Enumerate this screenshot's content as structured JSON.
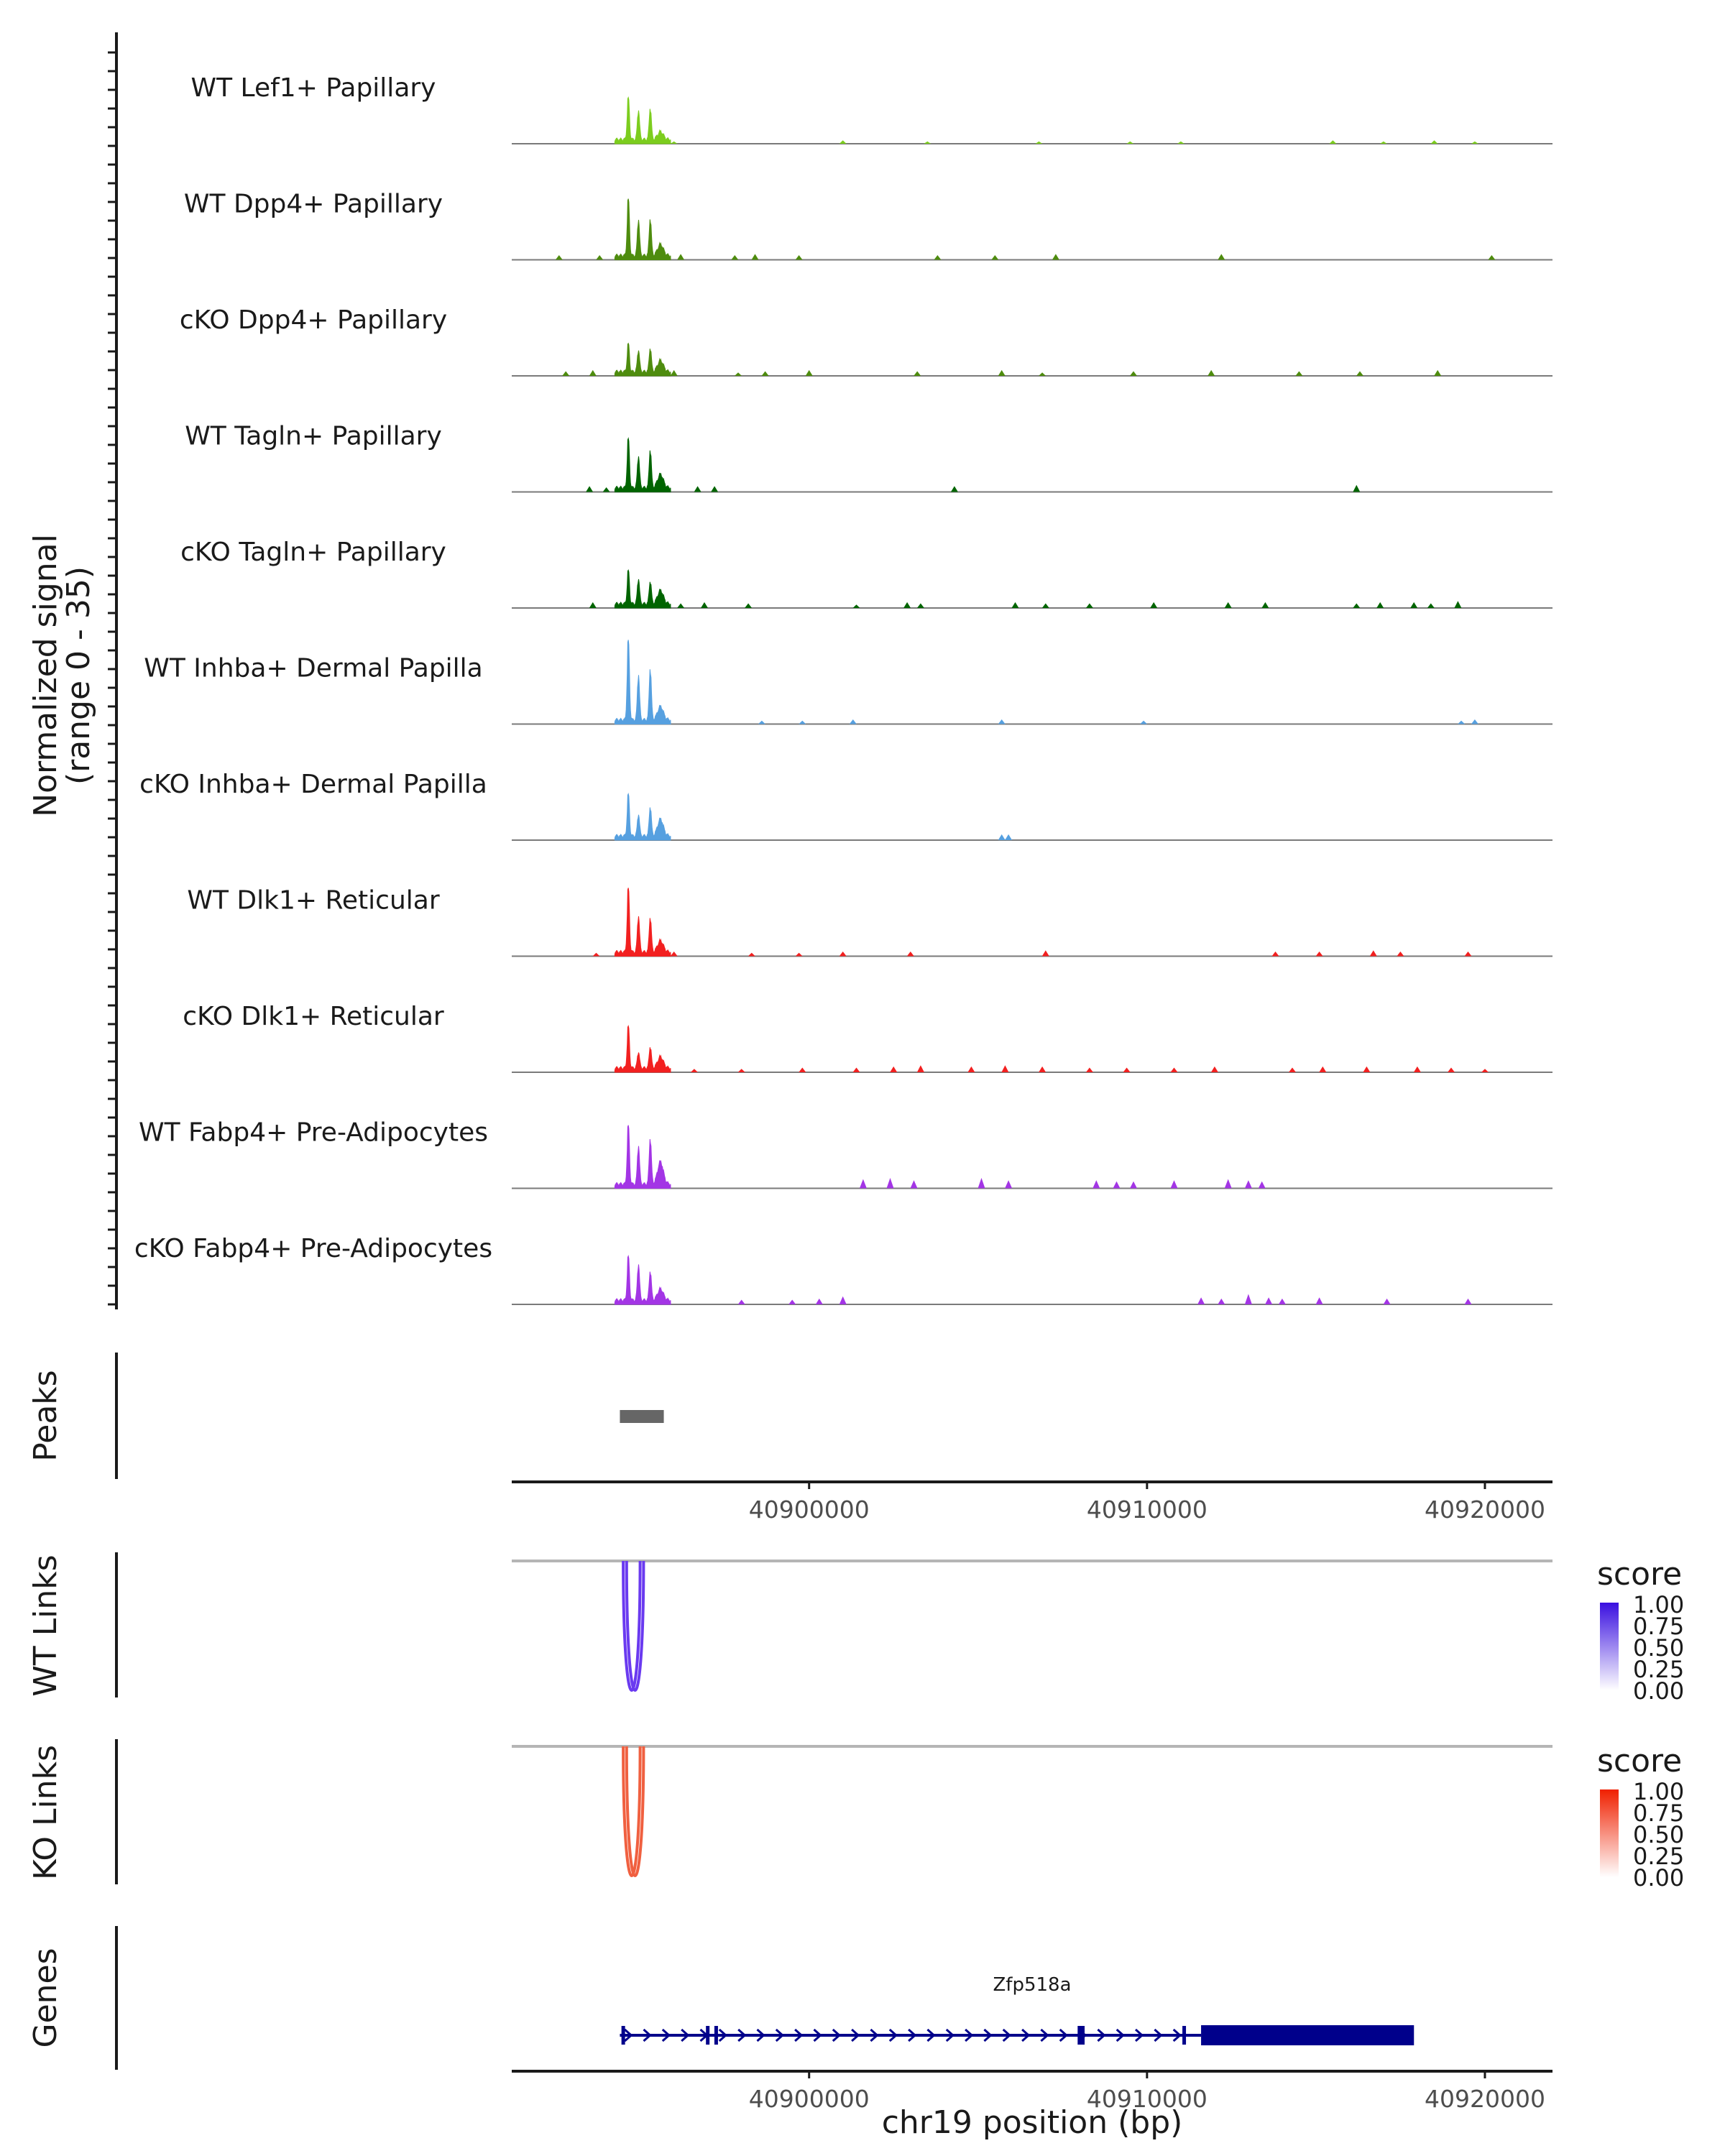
{
  "chart_data": {
    "type": "genome-coverage",
    "region": "chr19",
    "xlim": [
      40891200,
      40922000
    ],
    "x_ticks": [
      "40900000",
      "40910000",
      "40920000"
    ],
    "x_tick_values": [
      40900000,
      40910000,
      40920000
    ],
    "xlabel": "chr19 position (bp)",
    "coverage_ylabel": "Normalized signal",
    "coverage_ylabel_range": "(range 0 - 35)",
    "coverage_range": [
      0,
      35
    ],
    "tracks": [
      {
        "label": "WT Lef1+ Papillary",
        "color": "#7CCD1E",
        "peak_heights": [
          0.39,
          0.27,
          0.29,
          0.07
        ],
        "noise": [
          [
            40896000,
            0.02
          ],
          [
            40901000,
            0.03
          ],
          [
            40903500,
            0.02
          ],
          [
            40906800,
            0.02
          ],
          [
            40909500,
            0.02
          ],
          [
            40911000,
            0.02
          ],
          [
            40915500,
            0.03
          ],
          [
            40917000,
            0.02
          ],
          [
            40918500,
            0.03
          ],
          [
            40919700,
            0.02
          ]
        ]
      },
      {
        "label": "WT Dpp4+ Papillary",
        "color": "#4E8C0E",
        "peak_heights": [
          0.53,
          0.33,
          0.34,
          0.1
        ],
        "noise": [
          [
            40892600,
            0.04
          ],
          [
            40893800,
            0.04
          ],
          [
            40896200,
            0.05
          ],
          [
            40897800,
            0.04
          ],
          [
            40898400,
            0.05
          ],
          [
            40899700,
            0.04
          ],
          [
            40903800,
            0.04
          ],
          [
            40905500,
            0.04
          ],
          [
            40907300,
            0.05
          ],
          [
            40912200,
            0.05
          ],
          [
            40920200,
            0.04
          ]
        ]
      },
      {
        "label": "cKO Dpp4+ Papillary",
        "color": "#4E8C0E",
        "peak_heights": [
          0.26,
          0.2,
          0.22,
          0.1
        ],
        "noise": [
          [
            40892800,
            0.04
          ],
          [
            40893600,
            0.05
          ],
          [
            40896000,
            0.05
          ],
          [
            40897900,
            0.03
          ],
          [
            40898700,
            0.04
          ],
          [
            40900000,
            0.05
          ],
          [
            40903200,
            0.04
          ],
          [
            40905700,
            0.05
          ],
          [
            40906900,
            0.03
          ],
          [
            40909600,
            0.04
          ],
          [
            40911900,
            0.05
          ],
          [
            40914500,
            0.04
          ],
          [
            40916300,
            0.04
          ],
          [
            40918600,
            0.05
          ]
        ]
      },
      {
        "label": "WT Tagln+ Papillary",
        "color": "#006400",
        "peak_heights": [
          0.46,
          0.29,
          0.35,
          0.12
        ],
        "noise": [
          [
            40893500,
            0.05
          ],
          [
            40894000,
            0.04
          ],
          [
            40896700,
            0.05
          ],
          [
            40897200,
            0.05
          ],
          [
            40904300,
            0.05
          ],
          [
            40916200,
            0.06
          ]
        ]
      },
      {
        "label": "cKO Tagln+ Papillary",
        "color": "#006400",
        "peak_heights": [
          0.31,
          0.23,
          0.21,
          0.12
        ],
        "noise": [
          [
            40893600,
            0.05
          ],
          [
            40896200,
            0.04
          ],
          [
            40896900,
            0.05
          ],
          [
            40898200,
            0.04
          ],
          [
            40901400,
            0.03
          ],
          [
            40902900,
            0.05
          ],
          [
            40903300,
            0.04
          ],
          [
            40906100,
            0.05
          ],
          [
            40907000,
            0.04
          ],
          [
            40908300,
            0.04
          ],
          [
            40910200,
            0.05
          ],
          [
            40912400,
            0.05
          ],
          [
            40913500,
            0.05
          ],
          [
            40916200,
            0.04
          ],
          [
            40916900,
            0.05
          ],
          [
            40917900,
            0.05
          ],
          [
            40918400,
            0.04
          ],
          [
            40919200,
            0.06
          ]
        ]
      },
      {
        "label": "WT Inhba+ Dermal Papilla",
        "color": "#56A0E0",
        "peak_heights": [
          0.75,
          0.41,
          0.47,
          0.12
        ],
        "noise": [
          [
            40898600,
            0.03
          ],
          [
            40899800,
            0.03
          ],
          [
            40901300,
            0.04
          ],
          [
            40905700,
            0.04
          ],
          [
            40909900,
            0.03
          ],
          [
            40919300,
            0.03
          ],
          [
            40919700,
            0.04
          ]
        ]
      },
      {
        "label": "cKO Inhba+ Dermal Papilla",
        "color": "#56A0E0",
        "peak_heights": [
          0.39,
          0.2,
          0.27,
          0.15
        ],
        "noise": [
          [
            40905700,
            0.05
          ],
          [
            40905900,
            0.05
          ]
        ]
      },
      {
        "label": "WT Dlk1+ Reticular",
        "color": "#F22020",
        "peak_heights": [
          0.6,
          0.33,
          0.32,
          0.1
        ],
        "noise": [
          [
            40893700,
            0.03
          ],
          [
            40896000,
            0.04
          ],
          [
            40898300,
            0.03
          ],
          [
            40899700,
            0.03
          ],
          [
            40901000,
            0.04
          ],
          [
            40903000,
            0.04
          ],
          [
            40907000,
            0.05
          ],
          [
            40913800,
            0.04
          ],
          [
            40915100,
            0.04
          ],
          [
            40916700,
            0.05
          ],
          [
            40917500,
            0.04
          ],
          [
            40919500,
            0.04
          ]
        ]
      },
      {
        "label": "cKO Dlk1+ Reticular",
        "color": "#F22020",
        "peak_heights": [
          0.39,
          0.15,
          0.2,
          0.1
        ],
        "noise": [
          [
            40896600,
            0.03
          ],
          [
            40898000,
            0.03
          ],
          [
            40899800,
            0.04
          ],
          [
            40901400,
            0.04
          ],
          [
            40902500,
            0.05
          ],
          [
            40903300,
            0.06
          ],
          [
            40904800,
            0.05
          ],
          [
            40905800,
            0.06
          ],
          [
            40906900,
            0.05
          ],
          [
            40908300,
            0.04
          ],
          [
            40909400,
            0.04
          ],
          [
            40910800,
            0.04
          ],
          [
            40912000,
            0.05
          ],
          [
            40914300,
            0.04
          ],
          [
            40915200,
            0.05
          ],
          [
            40916500,
            0.05
          ],
          [
            40918000,
            0.05
          ],
          [
            40919000,
            0.04
          ],
          [
            40920000,
            0.03
          ]
        ]
      },
      {
        "label": "WT Fabp4+ Pre-Adipocytes",
        "color": "#A335E5",
        "peak_heights": [
          0.55,
          0.35,
          0.42,
          0.2
        ],
        "noise": [
          [
            40901600,
            0.08
          ],
          [
            40902400,
            0.09
          ],
          [
            40903100,
            0.07
          ],
          [
            40905100,
            0.09
          ],
          [
            40905900,
            0.07
          ],
          [
            40908500,
            0.07
          ],
          [
            40909100,
            0.06
          ],
          [
            40909600,
            0.06
          ],
          [
            40910800,
            0.07
          ],
          [
            40912400,
            0.08
          ],
          [
            40913000,
            0.07
          ],
          [
            40913400,
            0.06
          ]
        ]
      },
      {
        "label": "cKO Fabp4+ Pre-Adipocytes",
        "color": "#A335E5",
        "peak_heights": [
          0.41,
          0.33,
          0.27,
          0.1
        ],
        "noise": [
          [
            40895800,
            0.04
          ],
          [
            40898000,
            0.04
          ],
          [
            40899500,
            0.04
          ],
          [
            40900300,
            0.05
          ],
          [
            40901000,
            0.07
          ],
          [
            40911600,
            0.06
          ],
          [
            40912200,
            0.05
          ],
          [
            40913000,
            0.09
          ],
          [
            40913600,
            0.06
          ],
          [
            40914000,
            0.05
          ],
          [
            40915100,
            0.06
          ],
          [
            40917100,
            0.05
          ],
          [
            40919500,
            0.05
          ]
        ]
      }
    ],
    "peaks_label": "Peaks",
    "peaks": [
      [
        40894400,
        40895700
      ]
    ],
    "link_tracks": [
      {
        "label": "WT Links",
        "color": "#6A3AF0",
        "links": [
          [
            40894500,
            40895000
          ],
          [
            40894600,
            40895100
          ]
        ],
        "legend": {
          "title": "score",
          "ticks": [
            "1.00",
            "0.75",
            "0.50",
            "0.25",
            "0.00"
          ],
          "low": "#ffffff",
          "high": "#3A10E0"
        }
      },
      {
        "label": "KO Links",
        "color": "#F06040",
        "links": [
          [
            40894500,
            40895000
          ],
          [
            40894600,
            40895100
          ]
        ],
        "legend": {
          "title": "score",
          "ticks": [
            "1.00",
            "0.75",
            "0.50",
            "0.25",
            "0.00"
          ],
          "low": "#ffffff",
          "high": "#F02000"
        }
      }
    ],
    "genes_label": "Genes",
    "gene": {
      "name": "Zfp518a",
      "color": "#00008B",
      "start": 40894400,
      "end": 40917900,
      "thick_start": 40911600,
      "thick_end": 40917900,
      "exons": [
        40894500,
        40897000,
        40897250,
        40908000,
        40908100,
        40911100
      ]
    }
  }
}
